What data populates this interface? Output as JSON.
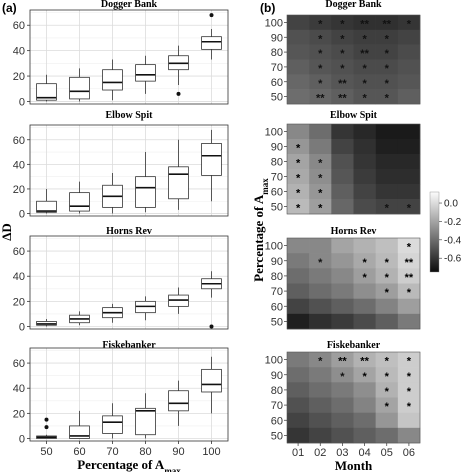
{
  "panel_labels": {
    "a": "(a)",
    "b": "(b)"
  },
  "chart_data": [
    {
      "type": "box",
      "panel": "(a)",
      "ylabel": "ΔD",
      "xlabel": "Percentage of A",
      "xlabel_sub": "max",
      "categories": [
        "50",
        "60",
        "70",
        "80",
        "90",
        "100"
      ],
      "ylim": [
        -2,
        72
      ],
      "yticks": [
        0,
        20,
        40,
        60
      ],
      "grid": true,
      "facets": [
        {
          "title": "Dogger Bank",
          "boxes": [
            {
              "min": 0,
              "q1": 1,
              "median": 3,
              "q3": 14,
              "max": 21,
              "outliers": []
            },
            {
              "min": 0,
              "q1": 2,
              "median": 8,
              "q3": 19,
              "max": 26,
              "outliers": []
            },
            {
              "min": 1,
              "q1": 9,
              "median": 15,
              "q3": 25,
              "max": 33,
              "outliers": []
            },
            {
              "min": 6,
              "q1": 16,
              "median": 21,
              "q3": 29,
              "max": 36,
              "outliers": []
            },
            {
              "min": 13,
              "q1": 25,
              "median": 30,
              "q3": 36,
              "max": 44,
              "outliers": [
                6
              ]
            },
            {
              "min": 33,
              "q1": 41,
              "median": 47,
              "q3": 51,
              "max": 57,
              "outliers": [
                68
              ]
            }
          ]
        },
        {
          "title": "Elbow Spit",
          "boxes": [
            {
              "min": 0,
              "q1": 1,
              "median": 2,
              "q3": 10,
              "max": 20,
              "outliers": []
            },
            {
              "min": 0,
              "q1": 2,
              "median": 6,
              "q3": 17,
              "max": 26,
              "outliers": []
            },
            {
              "min": 0,
              "q1": 5,
              "median": 14,
              "q3": 23,
              "max": 33,
              "outliers": []
            },
            {
              "min": 1,
              "q1": 5,
              "median": 21,
              "q3": 30,
              "max": 50,
              "outliers": []
            },
            {
              "min": 3,
              "q1": 12,
              "median": 32,
              "q3": 38,
              "max": 60,
              "outliers": []
            },
            {
              "min": 10,
              "q1": 31,
              "median": 47,
              "q3": 57,
              "max": 68,
              "outliers": []
            }
          ]
        },
        {
          "title": "Horns Rev",
          "boxes": [
            {
              "min": 0,
              "q1": 1,
              "median": 2,
              "q3": 4,
              "max": 6,
              "outliers": []
            },
            {
              "min": 1,
              "q1": 3,
              "median": 6,
              "q3": 9,
              "max": 12,
              "outliers": []
            },
            {
              "min": 3,
              "q1": 7,
              "median": 11,
              "q3": 15,
              "max": 18,
              "outliers": []
            },
            {
              "min": 5,
              "q1": 11,
              "median": 16,
              "q3": 20,
              "max": 24,
              "outliers": []
            },
            {
              "min": 10,
              "q1": 16,
              "median": 21,
              "q3": 25,
              "max": 31,
              "outliers": []
            },
            {
              "min": 23,
              "q1": 30,
              "median": 34,
              "q3": 38,
              "max": 44,
              "outliers": [
                0
              ]
            }
          ]
        },
        {
          "title": "Fiskebanker",
          "boxes": [
            {
              "min": 0,
              "q1": 0,
              "median": 1,
              "q3": 2,
              "max": 3,
              "outliers": [
                9,
                15
              ]
            },
            {
              "min": 0,
              "q1": 0,
              "median": 2,
              "q3": 10,
              "max": 22,
              "outliers": []
            },
            {
              "min": 0,
              "q1": 4,
              "median": 13,
              "q3": 18,
              "max": 28,
              "outliers": []
            },
            {
              "min": 0,
              "q1": 3,
              "median": 22,
              "q3": 24,
              "max": 36,
              "outliers": []
            },
            {
              "min": 10,
              "q1": 22,
              "median": 28,
              "q3": 38,
              "max": 46,
              "outliers": []
            },
            {
              "min": 20,
              "q1": 37,
              "median": 43,
              "q3": 55,
              "max": 65,
              "outliers": []
            }
          ]
        }
      ]
    },
    {
      "type": "heatmap",
      "panel": "(b)",
      "xlabel": "Month",
      "ylabel": "Percentage of A",
      "ylabel_sub": "max",
      "x": [
        "01",
        "02",
        "03",
        "04",
        "05",
        "06"
      ],
      "y": [
        "100",
        "90",
        "80",
        "70",
        "60",
        "50"
      ],
      "colorbar": {
        "ticks": [
          "0.0",
          "-0.2",
          "-0.4",
          "-0.6"
        ],
        "values": [
          0.0,
          -0.2,
          -0.4,
          -0.6
        ],
        "range": [
          -0.75,
          0.12
        ]
      },
      "facets": [
        {
          "title": "Dogger Bank",
          "values": [
            [
              -0.55,
              -0.58,
              -0.6,
              -0.62,
              -0.62,
              -0.6
            ],
            [
              -0.5,
              -0.52,
              -0.55,
              -0.57,
              -0.57,
              -0.55
            ],
            [
              -0.48,
              -0.5,
              -0.52,
              -0.55,
              -0.55,
              -0.52
            ],
            [
              -0.45,
              -0.48,
              -0.5,
              -0.52,
              -0.52,
              -0.5
            ],
            [
              -0.42,
              -0.45,
              -0.48,
              -0.5,
              -0.5,
              -0.48
            ],
            [
              -0.4,
              -0.42,
              -0.45,
              -0.48,
              -0.48,
              -0.45
            ]
          ],
          "stars": [
            [
              "",
              "*",
              "*",
              "**",
              "**",
              "*"
            ],
            [
              "",
              "*",
              "*",
              "*",
              "*",
              ""
            ],
            [
              "",
              "*",
              "*",
              "**",
              "*",
              ""
            ],
            [
              "",
              "*",
              "*",
              "*",
              "*",
              ""
            ],
            [
              "",
              "*",
              "**",
              "*",
              "*",
              ""
            ],
            [
              "",
              "**",
              "**",
              "*",
              "*",
              ""
            ]
          ]
        },
        {
          "title": "Elbow Spit",
          "values": [
            [
              -0.3,
              -0.4,
              -0.6,
              -0.65,
              -0.7,
              -0.7
            ],
            [
              -0.25,
              -0.35,
              -0.55,
              -0.62,
              -0.68,
              -0.68
            ],
            [
              -0.2,
              -0.3,
              -0.5,
              -0.6,
              -0.65,
              -0.65
            ],
            [
              -0.18,
              -0.28,
              -0.48,
              -0.58,
              -0.63,
              -0.63
            ],
            [
              -0.15,
              -0.25,
              -0.45,
              -0.55,
              -0.6,
              -0.6
            ],
            [
              -0.12,
              -0.22,
              -0.42,
              -0.52,
              -0.55,
              -0.55
            ]
          ],
          "stars": [
            [
              "",
              "",
              "",
              "",
              "",
              ""
            ],
            [
              "*",
              "",
              "",
              "",
              "",
              ""
            ],
            [
              "*",
              "*",
              "",
              "",
              "",
              ""
            ],
            [
              "*",
              "*",
              "",
              "",
              "",
              ""
            ],
            [
              "*",
              "*",
              "",
              "",
              "",
              ""
            ],
            [
              "*",
              "*",
              "",
              "",
              "*",
              "*"
            ]
          ]
        },
        {
          "title": "Horns Rev",
          "values": [
            [
              -0.3,
              -0.3,
              -0.2,
              -0.15,
              -0.1,
              0.0
            ],
            [
              -0.35,
              -0.3,
              -0.25,
              -0.18,
              -0.12,
              -0.02
            ],
            [
              -0.4,
              -0.35,
              -0.3,
              -0.22,
              -0.15,
              -0.05
            ],
            [
              -0.45,
              -0.4,
              -0.35,
              -0.28,
              -0.22,
              -0.12
            ],
            [
              -0.55,
              -0.5,
              -0.45,
              -0.4,
              -0.32,
              -0.22
            ],
            [
              -0.68,
              -0.62,
              -0.58,
              -0.52,
              -0.45,
              -0.35
            ]
          ],
          "stars": [
            [
              "",
              "",
              "",
              "",
              "",
              "*"
            ],
            [
              "",
              "*",
              "",
              "*",
              "*",
              "**"
            ],
            [
              "",
              "",
              "",
              "*",
              "*",
              "**"
            ],
            [
              "",
              "",
              "",
              "",
              "*",
              "*"
            ],
            [
              "",
              "",
              "",
              "",
              "",
              ""
            ],
            [
              "",
              "",
              "",
              "",
              "",
              ""
            ]
          ]
        },
        {
          "title": "Fiskebanker",
          "values": [
            [
              -0.35,
              -0.3,
              -0.22,
              -0.15,
              -0.1,
              -0.05
            ],
            [
              -0.4,
              -0.35,
              -0.28,
              -0.2,
              -0.12,
              -0.05
            ],
            [
              -0.45,
              -0.4,
              -0.35,
              -0.28,
              -0.15,
              -0.05
            ],
            [
              -0.5,
              -0.45,
              -0.4,
              -0.32,
              -0.2,
              -0.05
            ],
            [
              -0.55,
              -0.5,
              -0.45,
              -0.4,
              -0.25,
              -0.08
            ],
            [
              -0.6,
              -0.55,
              -0.5,
              -0.45,
              -0.4,
              -0.3
            ]
          ],
          "stars": [
            [
              "",
              "*",
              "**",
              "**",
              "*",
              "*"
            ],
            [
              "",
              "",
              "*",
              "*",
              "*",
              "*"
            ],
            [
              "",
              "",
              "",
              "",
              "*",
              "*"
            ],
            [
              "",
              "",
              "",
              "",
              "*",
              "*"
            ],
            [
              "",
              "",
              "",
              "",
              "",
              ""
            ],
            [
              "",
              "",
              "",
              "",
              "",
              ""
            ]
          ]
        }
      ]
    }
  ]
}
